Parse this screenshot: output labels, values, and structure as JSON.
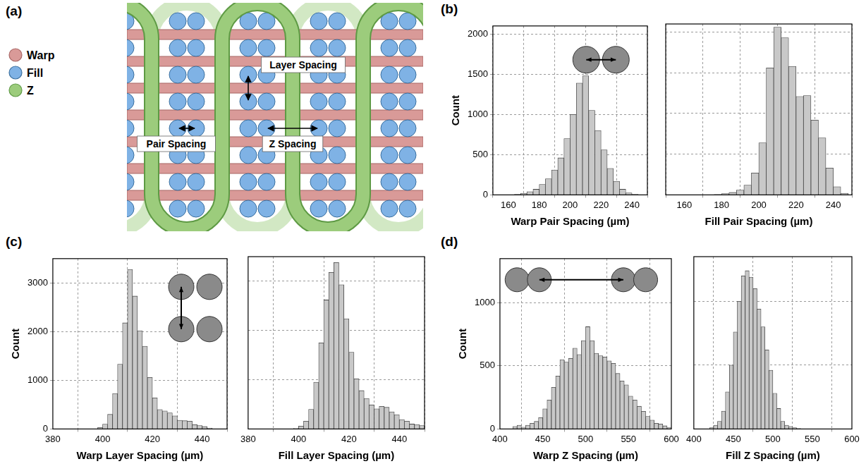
{
  "diagram": {
    "panel": "(a)",
    "legend": [
      {
        "label": "Warp",
        "color": "#d99a98"
      },
      {
        "label": "Fill",
        "color": "#7fb2e5"
      },
      {
        "label": "Z",
        "color": "#9ccc7c"
      }
    ],
    "labels": [
      "Layer Spacing",
      "Pair Spacing",
      "Z Spacing"
    ]
  },
  "chart_data": [
    {
      "type": "histogram",
      "panel": "(b)",
      "x_label": "Warp Pair Spacing (µm)",
      "y_label": "Count",
      "bins": [
        160,
        164,
        168,
        172,
        176,
        180,
        184,
        188,
        192,
        196,
        200,
        204,
        208,
        212,
        216,
        220,
        224,
        228,
        232,
        236,
        240,
        244,
        248
      ],
      "values": [
        2,
        8,
        20,
        40,
        70,
        130,
        200,
        310,
        460,
        700,
        1000,
        1390,
        1480,
        1050,
        800,
        560,
        330,
        170,
        70,
        25,
        8,
        2
      ],
      "color": "#c8c8c8",
      "xlim": [
        150,
        250
      ],
      "xticks": [
        160,
        180,
        200,
        220,
        240
      ],
      "ylim": [
        0,
        2100
      ],
      "yticks": [
        0,
        500,
        1000,
        1500,
        2000
      ],
      "grid": true
    },
    {
      "type": "histogram",
      "x_label": "Fill Pair Spacing (µm)",
      "bins": [
        176,
        180,
        184,
        188,
        192,
        196,
        200,
        204,
        208,
        212,
        216,
        220,
        224,
        228,
        232,
        236,
        240,
        244,
        248
      ],
      "values": [
        5,
        15,
        30,
        60,
        120,
        270,
        640,
        1560,
        2060,
        1930,
        1580,
        1210,
        1220,
        920,
        700,
        330,
        100,
        20
      ],
      "color": "#c8c8c8",
      "xlim": [
        150,
        250
      ],
      "xticks": [
        160,
        180,
        200,
        220,
        240
      ],
      "ylim": [
        0,
        2100
      ],
      "yticks": [
        0,
        500,
        1000,
        1500,
        2000
      ],
      "grid": true,
      "tick_labels": "x"
    },
    {
      "type": "histogram",
      "panel": "(c)",
      "x_label": "Warp Layer Spacing (µm)",
      "y_label": "Count",
      "bins": [
        396,
        398,
        400,
        402,
        404,
        406,
        408,
        410,
        412,
        414,
        416,
        418,
        420,
        422,
        424,
        426,
        428,
        430,
        432,
        434,
        436,
        438,
        440,
        442,
        444,
        446
      ],
      "values": [
        5,
        30,
        100,
        300,
        730,
        1330,
        2180,
        3280,
        2730,
        2020,
        1700,
        1060,
        640,
        400,
        370,
        330,
        270,
        180,
        170,
        160,
        90,
        70,
        50,
        20,
        5
      ],
      "color": "#c8c8c8",
      "xlim": [
        380,
        450
      ],
      "xticks": [
        380,
        400,
        420,
        440
      ],
      "ylim": [
        0,
        3500
      ],
      "yticks": [
        0,
        1000,
        2000,
        3000
      ],
      "grid": true
    },
    {
      "type": "histogram",
      "x_label": "Fill Layer Spacing (µm)",
      "bins": [
        398,
        400,
        402,
        404,
        406,
        408,
        410,
        412,
        414,
        416,
        418,
        420,
        422,
        424,
        426,
        428,
        430,
        432,
        434,
        436,
        438,
        440,
        442,
        444,
        446,
        448,
        450
      ],
      "values": [
        10,
        60,
        160,
        400,
        950,
        1750,
        2620,
        3180,
        3380,
        2930,
        2240,
        1560,
        1020,
        780,
        620,
        490,
        410,
        460,
        440,
        350,
        290,
        190,
        160,
        100,
        90,
        70
      ],
      "color": "#c8c8c8",
      "xlim": [
        380,
        450
      ],
      "xticks": [
        380,
        400,
        420,
        440
      ],
      "ylim": [
        0,
        3500
      ],
      "yticks": [
        0,
        1000,
        2000,
        3000
      ],
      "grid": true,
      "tick_labels": "x"
    },
    {
      "type": "histogram",
      "panel": "(d)",
      "x_label": "Warp Z Spacing (µm)",
      "y_label": "Count",
      "bins": [
        415,
        420,
        425,
        430,
        435,
        440,
        445,
        450,
        455,
        460,
        465,
        470,
        475,
        480,
        485,
        490,
        495,
        500,
        505,
        510,
        515,
        520,
        525,
        530,
        535,
        540,
        545,
        550,
        555,
        560,
        565,
        570,
        575,
        580,
        585,
        590,
        595,
        600
      ],
      "values": [
        20,
        30,
        15,
        30,
        45,
        60,
        90,
        160,
        230,
        330,
        420,
        550,
        530,
        560,
        640,
        590,
        700,
        810,
        700,
        600,
        580,
        570,
        540,
        520,
        440,
        380,
        350,
        260,
        230,
        180,
        140,
        100,
        70,
        45,
        40,
        25,
        10
      ],
      "color": "#c8c8c8",
      "xlim": [
        400,
        600
      ],
      "xticks": [
        400,
        450,
        500,
        550,
        600
      ],
      "ylim": [
        0,
        1350
      ],
      "yticks": [
        0,
        500,
        1000
      ],
      "grid": true
    },
    {
      "type": "histogram",
      "x_label": "Fill Z Spacing (µm)",
      "bins": [
        420,
        425,
        430,
        435,
        440,
        445,
        450,
        455,
        460,
        465,
        470,
        475,
        480,
        485,
        490,
        495,
        500,
        505,
        510,
        515,
        520,
        525,
        530,
        535
      ],
      "values": [
        10,
        30,
        60,
        140,
        290,
        500,
        760,
        1000,
        1200,
        1240,
        1190,
        1100,
        940,
        800,
        620,
        460,
        280,
        160,
        60,
        30,
        20,
        10,
        5
      ],
      "color": "#c8c8c8",
      "xlim": [
        400,
        600
      ],
      "xticks": [
        400,
        450,
        500,
        550,
        600
      ],
      "ylim": [
        0,
        1350
      ],
      "yticks": [
        0,
        500,
        1000
      ],
      "grid": true,
      "tick_labels": "x"
    }
  ]
}
